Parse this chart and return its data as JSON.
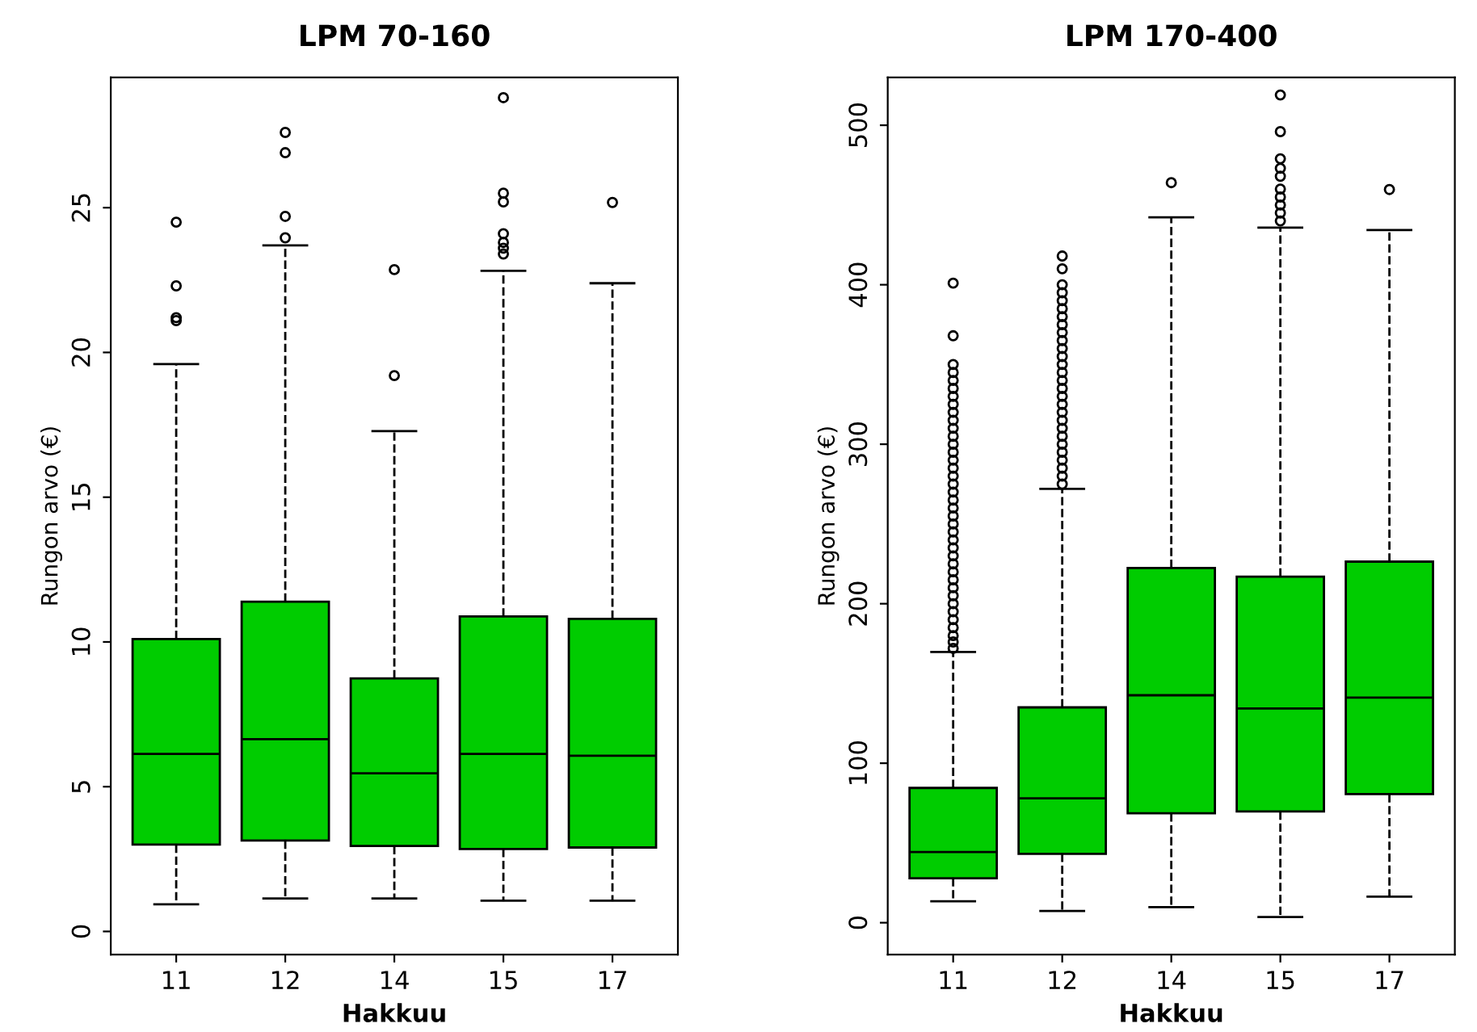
{
  "chart_data": [
    {
      "type": "box",
      "title": "LPM 70-160",
      "xlabel": "Hakkuu",
      "ylabel": "Rungon arvo (€)",
      "categories": [
        "11",
        "12",
        "14",
        "15",
        "17"
      ],
      "color": "#00cc00",
      "ylim": [
        -0.8,
        29.5
      ],
      "yticks": [
        0,
        5,
        10,
        15,
        20,
        25
      ],
      "grid": false,
      "line_style": "dashed",
      "boxes": [
        {
          "low": 0.94,
          "q1": 3.0,
          "median": 6.13,
          "q3": 10.1,
          "high": 19.6,
          "outliers": [
            21.1,
            21.2,
            22.3,
            24.5
          ]
        },
        {
          "low": 1.14,
          "q1": 3.14,
          "median": 6.64,
          "q3": 11.39,
          "high": 23.7,
          "outliers": [
            23.96,
            24.7,
            26.9,
            27.6
          ]
        },
        {
          "low": 1.14,
          "q1": 2.95,
          "median": 5.46,
          "q3": 8.74,
          "high": 17.28,
          "outliers": [
            19.2,
            22.86
          ]
        },
        {
          "low": 1.06,
          "q1": 2.85,
          "median": 6.13,
          "q3": 10.88,
          "high": 22.82,
          "outliers": [
            23.4,
            23.6,
            23.8,
            24.1,
            25.2,
            25.5,
            28.8
          ]
        },
        {
          "low": 1.06,
          "q1": 2.9,
          "median": 6.07,
          "q3": 10.8,
          "high": 22.39,
          "outliers": [
            25.18
          ]
        }
      ]
    },
    {
      "type": "box",
      "title": "LPM 170-400",
      "xlabel": "Hakkuu",
      "ylabel": "Rungon arvo (€)",
      "categories": [
        "11",
        "12",
        "14",
        "15",
        "17"
      ],
      "color": "#00cc00",
      "ylim": [
        -20,
        530
      ],
      "yticks": [
        0,
        100,
        200,
        300,
        400,
        500
      ],
      "grid": false,
      "line_style": "dashed",
      "boxes": [
        {
          "low": 13.4,
          "q1": 27.9,
          "median": 44.3,
          "q3": 84.5,
          "high": 169.8,
          "outliers": [
            172,
            176,
            180,
            185,
            190,
            195,
            200,
            205,
            210,
            215,
            220,
            225,
            230,
            235,
            240,
            245,
            250,
            255,
            260,
            265,
            270,
            275,
            280,
            285,
            290,
            295,
            300,
            305,
            310,
            315,
            320,
            325,
            330,
            335,
            340,
            345,
            350,
            368,
            401
          ]
        },
        {
          "low": 7.3,
          "q1": 43.2,
          "median": 78,
          "q3": 135,
          "high": 272,
          "outliers": [
            275,
            280,
            285,
            290,
            295,
            300,
            305,
            310,
            315,
            320,
            325,
            330,
            335,
            340,
            345,
            350,
            355,
            360,
            365,
            370,
            375,
            380,
            385,
            390,
            395,
            400,
            410,
            418
          ]
        },
        {
          "low": 9.8,
          "q1": 68.6,
          "median": 142.6,
          "q3": 222.4,
          "high": 442.3,
          "outliers": [
            464
          ]
        },
        {
          "low": 3.6,
          "q1": 69.7,
          "median": 134.3,
          "q3": 217,
          "high": 435.8,
          "outliers": [
            440,
            445,
            450,
            455,
            460,
            468,
            473,
            479,
            496,
            519
          ]
        },
        {
          "low": 16.3,
          "q1": 80.6,
          "median": 141.1,
          "q3": 226.4,
          "high": 434.3,
          "outliers": [
            459.7
          ]
        }
      ]
    }
  ]
}
